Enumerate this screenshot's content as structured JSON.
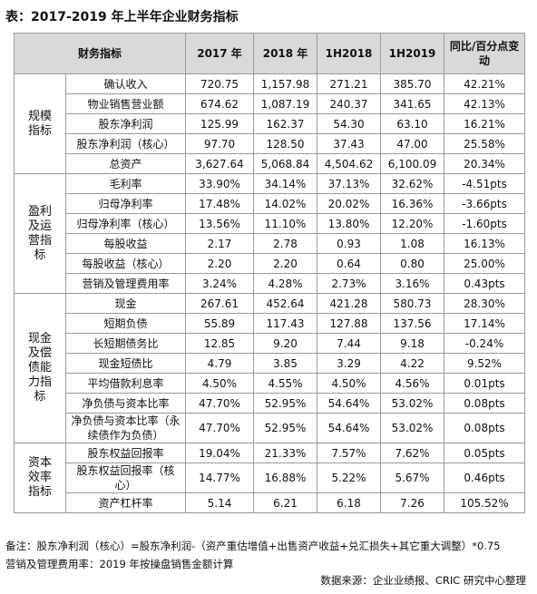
{
  "title": "表：2017-2019 年上半年企业财务指标",
  "table": {
    "header": [
      "财务指标",
      "2017 年",
      "2018 年",
      "1H2018",
      "1H2019",
      "同比/百分点变动"
    ],
    "groups": [
      {
        "label": "规模指标",
        "rows": [
          [
            "确认收入",
            "720.75",
            "1,157.98",
            "271.21",
            "385.70",
            "42.21%"
          ],
          [
            "物业销售营业额",
            "674.62",
            "1,087.19",
            "240.37",
            "341.65",
            "42.13%"
          ],
          [
            "股东净利润",
            "125.99",
            "162.37",
            "54.30",
            "63.10",
            "16.21%"
          ],
          [
            "股东净利润（核心）",
            "97.70",
            "128.50",
            "37.43",
            "47.00",
            "25.58%"
          ],
          [
            "总资产",
            "3,627.64",
            "5,068.84",
            "4,504.62",
            "6,100.09",
            "20.34%"
          ]
        ]
      },
      {
        "label": "盈利及运营指标",
        "rows": [
          [
            "毛利率",
            "33.90%",
            "34.14%",
            "37.13%",
            "32.62%",
            "-4.51pts"
          ],
          [
            "归母净利率",
            "17.48%",
            "14.02%",
            "20.02%",
            "16.36%",
            "-3.66pts"
          ],
          [
            "归母净利率（核心）",
            "13.56%",
            "11.10%",
            "13.80%",
            "12.20%",
            "-1.60pts"
          ],
          [
            "每股收益",
            "2.17",
            "2.78",
            "0.93",
            "1.08",
            "16.13%"
          ],
          [
            "每股收益（核心）",
            "2.20",
            "2.20",
            "0.64",
            "0.80",
            "25.00%"
          ],
          [
            "营销及管理费用率",
            "3.24%",
            "4.28%",
            "2.73%",
            "3.16%",
            "0.43pts"
          ]
        ]
      },
      {
        "label": "现金及偿债能力指标",
        "rows": [
          [
            "现金",
            "267.61",
            "452.64",
            "421.28",
            "580.73",
            "28.30%"
          ],
          [
            "短期负债",
            "55.89",
            "117.43",
            "127.88",
            "137.56",
            "17.14%"
          ],
          [
            "长短期债务比",
            "12.85",
            "9.20",
            "7.44",
            "9.18",
            "-0.24%"
          ],
          [
            "现金短债比",
            "4.79",
            "3.85",
            "3.29",
            "4.22",
            "9.52%"
          ],
          [
            "平均借款利息率",
            "4.50%",
            "4.55%",
            "4.50%",
            "4.56%",
            "0.01pts"
          ],
          [
            "净负债与资本比率",
            "47.70%",
            "52.95%",
            "54.64%",
            "53.02%",
            "0.08pts"
          ],
          [
            "净负债与资本比率（永续债作为负债）",
            "47.70%",
            "52.95%",
            "54.64%",
            "53.02%",
            "0.08pts"
          ]
        ]
      },
      {
        "label": "资本效率指标",
        "rows": [
          [
            "股东权益回报率",
            "19.04%",
            "21.33%",
            "7.57%",
            "7.62%",
            "0.05pts"
          ],
          [
            "股东权益回报率（核心）",
            "14.77%",
            "16.88%",
            "5.22%",
            "5.67%",
            "0.46pts"
          ],
          [
            "资产杠杆率",
            "5.14",
            "6.21",
            "6.18",
            "7.26",
            "105.52%"
          ]
        ]
      }
    ]
  },
  "notes": [
    "备注：股东净利润（核心）=股东净利润-（资产重估增值+出售资产收益+兑汇损失+其它重大调整）*0.75",
    "营销及管理费用率：2019 年按操盘销售金额计算"
  ],
  "source": "数据来源：企业业绩报、CRIC 研究中心整理"
}
